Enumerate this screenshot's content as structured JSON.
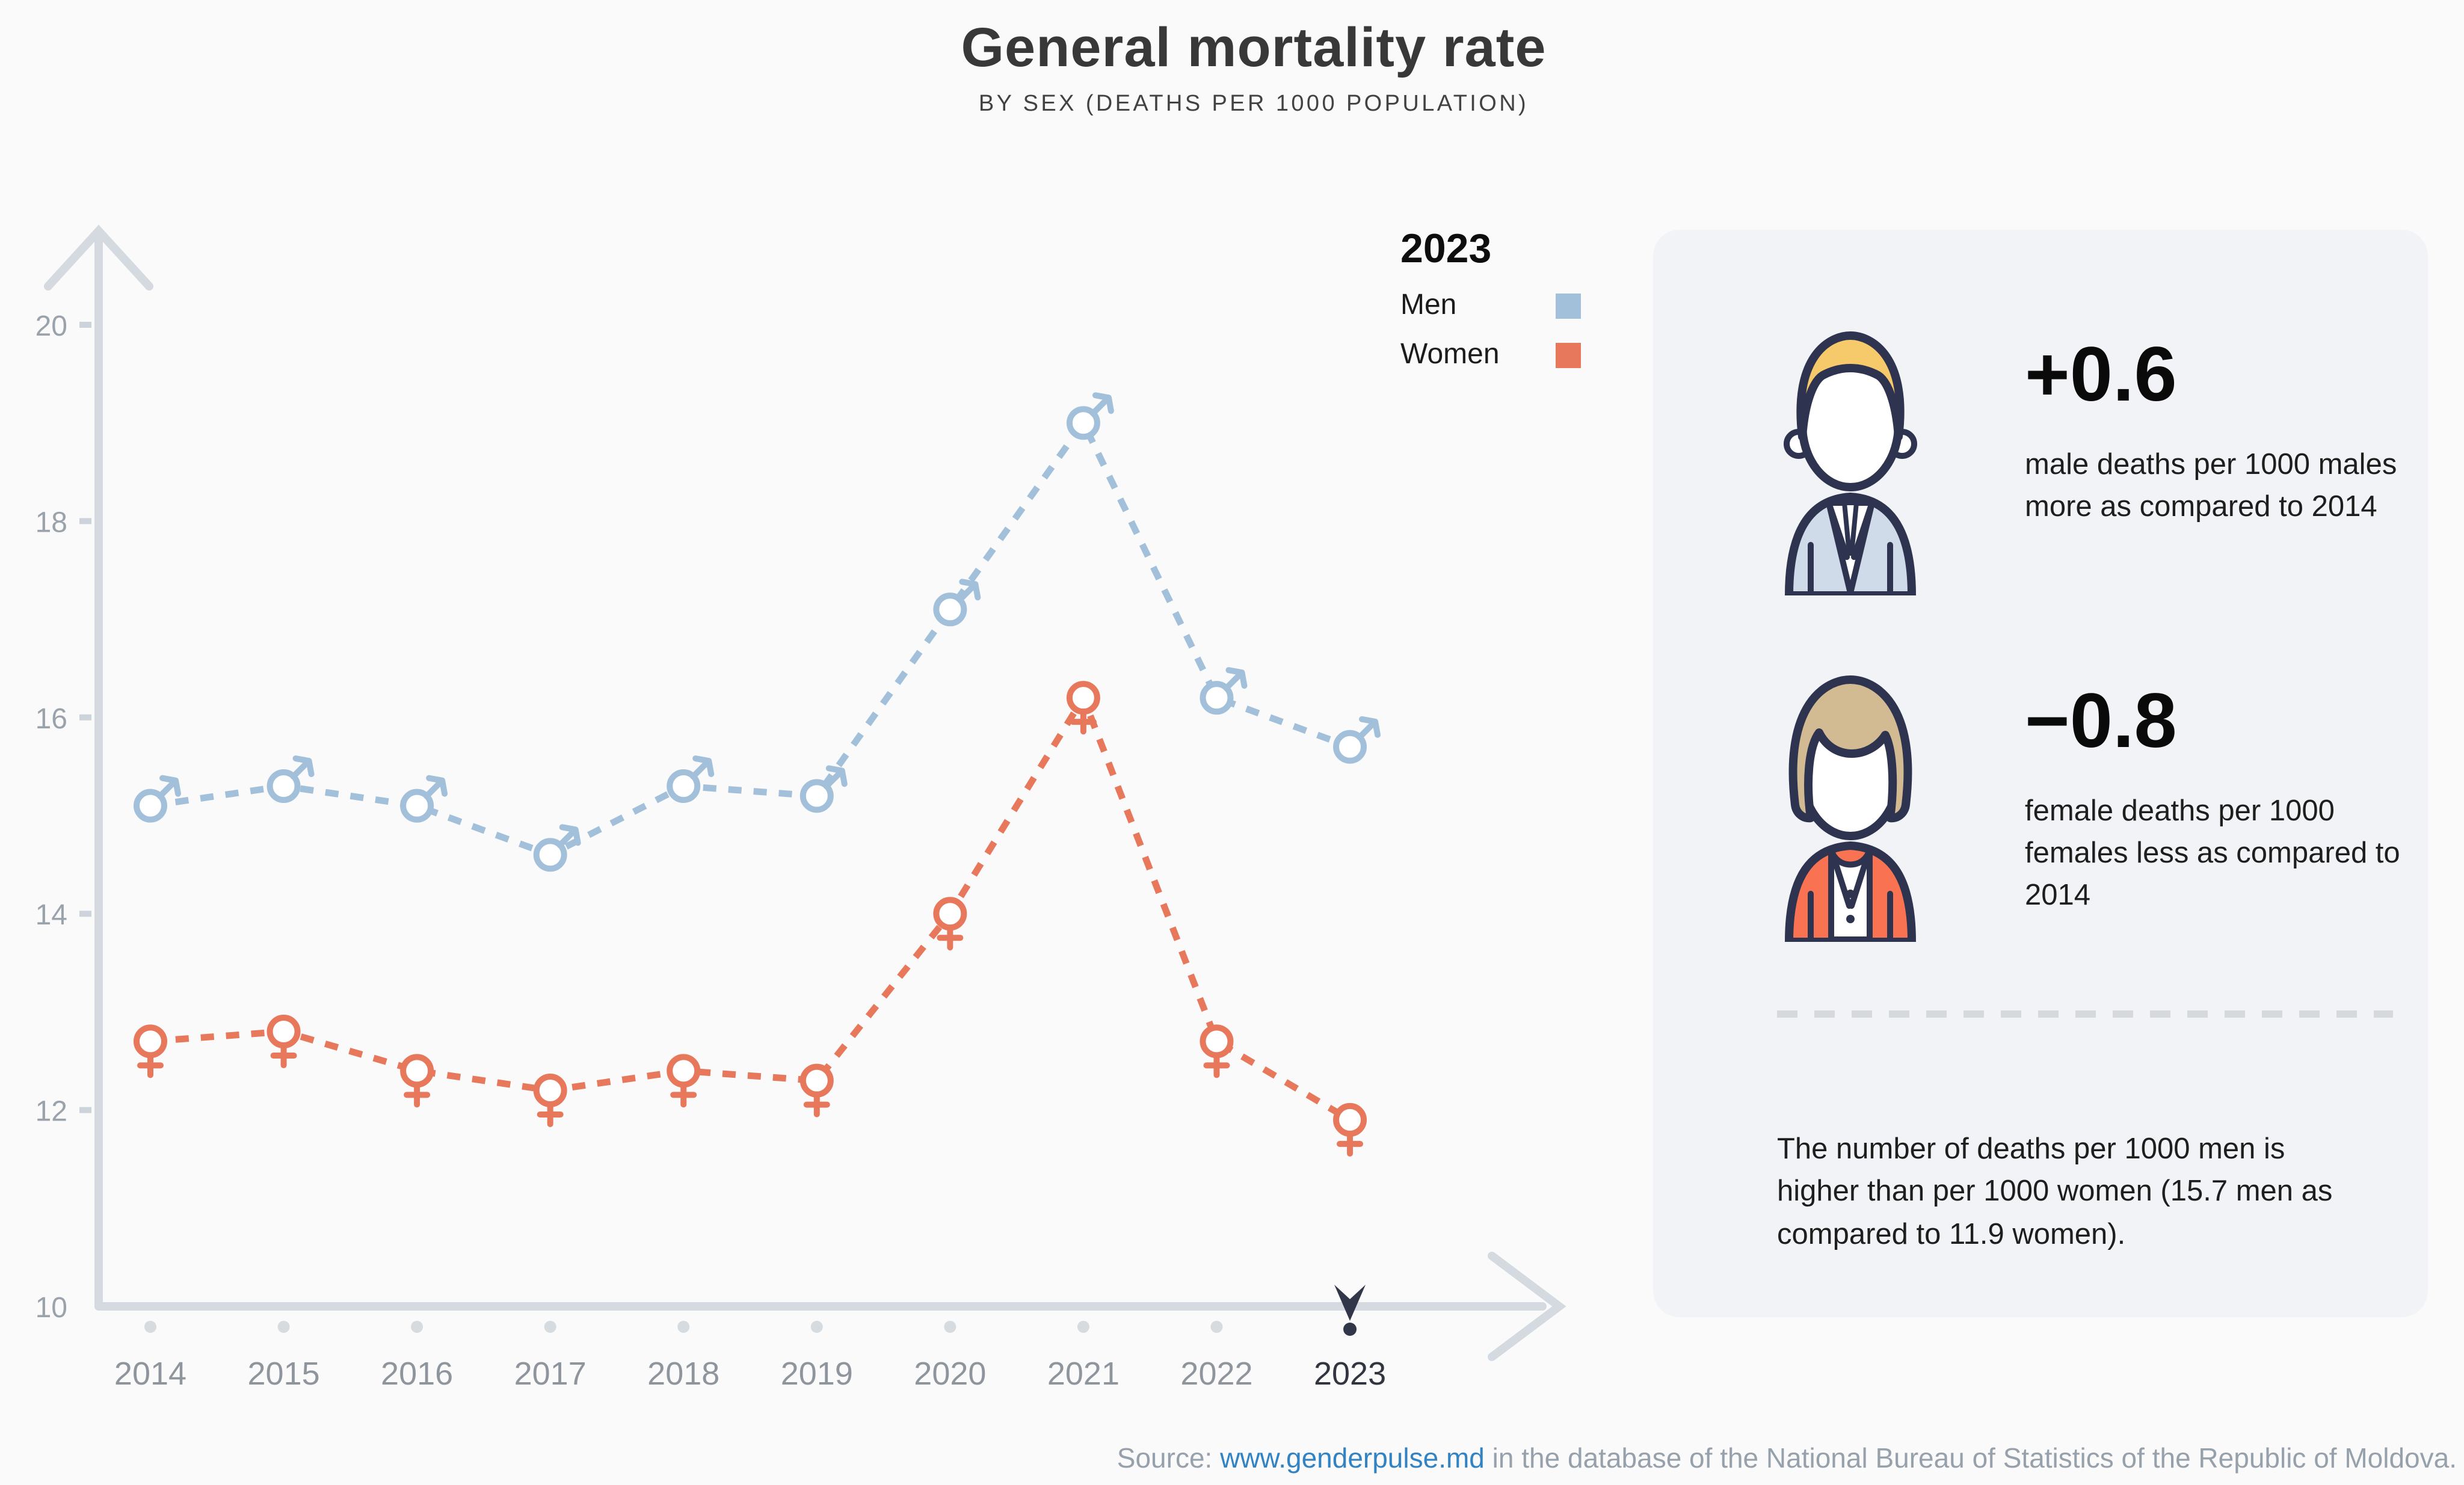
{
  "title": "General mortality rate",
  "subtitle": "BY SEX (DEATHS PER 1000 POPULATION)",
  "legend": {
    "year": "2023",
    "items": [
      {
        "label": "Men",
        "color": "#a3c0db"
      },
      {
        "label": "Women",
        "color": "#e8785c"
      }
    ]
  },
  "chart_data": {
    "type": "line",
    "x": [
      2014,
      2015,
      2016,
      2017,
      2018,
      2019,
      2020,
      2021,
      2022,
      2023
    ],
    "series": [
      {
        "name": "Men",
        "color": "#a3c0db",
        "marker": "male",
        "values": [
          15.1,
          15.3,
          15.1,
          14.6,
          15.3,
          15.2,
          17.1,
          19.0,
          16.2,
          15.7
        ]
      },
      {
        "name": "Women",
        "color": "#e8785c",
        "marker": "female",
        "values": [
          12.7,
          12.8,
          12.4,
          12.2,
          12.4,
          12.3,
          14.0,
          16.2,
          12.7,
          11.9
        ]
      }
    ],
    "xlabel": "",
    "ylabel": "",
    "ylim": [
      10,
      20.6
    ],
    "yticks": [
      10,
      12,
      14,
      16,
      18,
      20
    ],
    "grid": false,
    "line_style": "dashed",
    "legend_position": "top-right",
    "highlight_year": 2023
  },
  "panel": {
    "male_stat": {
      "icon": "man-avatar",
      "value": "+0.6",
      "description": "male deaths per 1000 males more as compared to 2014"
    },
    "female_stat": {
      "icon": "woman-avatar",
      "value": "−0.8",
      "description": "female deaths per 1000 females less as compared to 2014"
    },
    "summary": "The number of deaths per 1000 men is higher than per 1000 women (15.7 men as compared to 11.9 women)."
  },
  "source": {
    "prefix": "Source: ",
    "link": "www.genderpulse.md",
    "suffix": " in the database of the National Bureau of Statistics of the Republic of Moldova."
  },
  "colors": {
    "page_bg": "#fafafa",
    "panel_bg": "#f2f3f6",
    "men": "#a3c0db",
    "women": "#e8785c",
    "axis": "#d4dae0",
    "y_label": "#9aa2ab",
    "x_label": "#8e959d",
    "highlight_dark": "#313748",
    "outline_navy": "#2e3450",
    "male_hair": "#f6c96a",
    "male_suit": "#cfdbe9",
    "female_hair": "#d2bb92",
    "female_jacket": "#f97352",
    "link_blue": "#3183c4",
    "source_gray": "#97a1ac"
  }
}
